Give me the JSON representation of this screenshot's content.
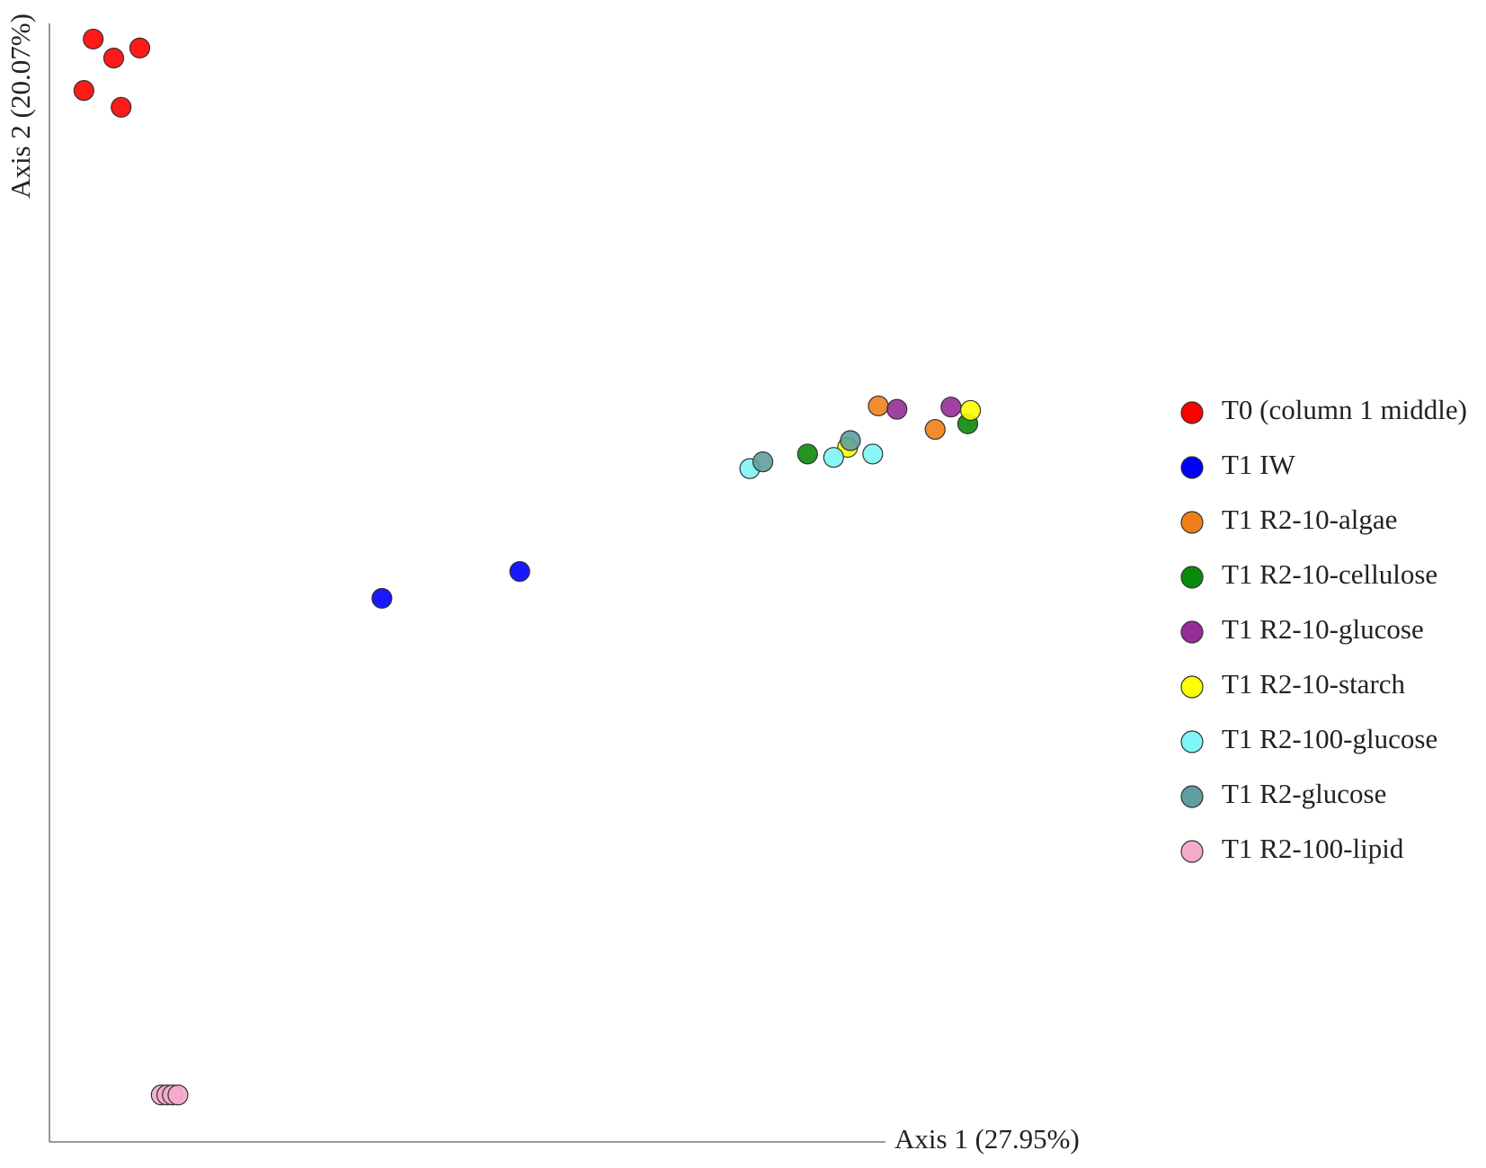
{
  "chart_data": {
    "type": "scatter",
    "x_label": "Axis 1 (27.95%)",
    "y_label": "Axis 2 (20.07%)",
    "xlim": [
      0,
      100
    ],
    "ylim": [
      0,
      100
    ],
    "legend": "right",
    "series": [
      {
        "name": "T0 (column 1 middle)",
        "color": "#ff0000",
        "x": [
          4.7,
          6.9,
          9.7,
          3.7,
          7.7
        ],
        "values": [
          98.6,
          96.9,
          97.8,
          94.0,
          92.5
        ]
      },
      {
        "name": "T1 IW",
        "color": "#0000ff",
        "x": [
          35.7,
          50.5
        ],
        "values": [
          48.6,
          51.0
        ]
      },
      {
        "name": "T1 R2-10-algae",
        "color": "#f07f18",
        "x": [
          89.0,
          95.1
        ],
        "values": [
          65.8,
          63.7
        ]
      },
      {
        "name": "T1 R2-10-cellulose",
        "color": "#0a8a0a",
        "x": [
          81.4,
          98.6
        ],
        "values": [
          61.5,
          64.2
        ]
      },
      {
        "name": "T1 R2-10-glucose",
        "color": "#962d96",
        "x": [
          91.0,
          96.8
        ],
        "values": [
          65.5,
          65.7
        ]
      },
      {
        "name": "T1 R2-10-starch",
        "color": "#ffff00",
        "x": [
          85.7,
          98.9
        ],
        "values": [
          62.1,
          65.4
        ]
      },
      {
        "name": "T1 R2-100-glucose",
        "color": "#7ff5f5",
        "x": [
          75.2,
          84.2,
          88.4
        ],
        "values": [
          60.2,
          61.2,
          61.5
        ]
      },
      {
        "name": "T1 R2-glucose",
        "color": "#5f9ea0",
        "x": [
          76.6,
          86.0
        ],
        "values": [
          60.8,
          62.7
        ]
      },
      {
        "name": "T1 R2-100-lipid",
        "color": "#f5aacb",
        "x": [
          12.0,
          12.6,
          13.2,
          13.8
        ],
        "values": [
          4.2,
          4.2,
          4.2,
          4.2
        ]
      }
    ]
  }
}
